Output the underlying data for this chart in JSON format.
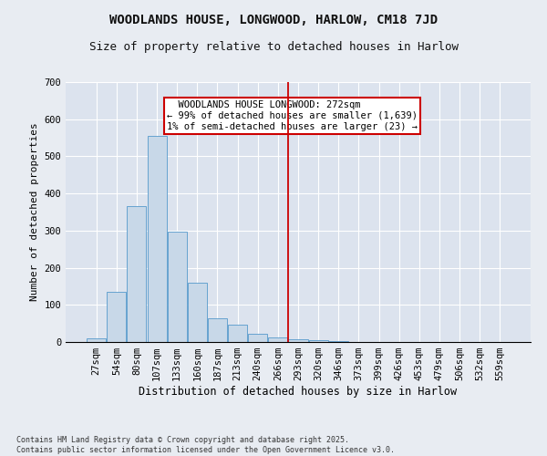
{
  "title": "WOODLANDS HOUSE, LONGWOOD, HARLOW, CM18 7JD",
  "subtitle": "Size of property relative to detached houses in Harlow",
  "xlabel": "Distribution of detached houses by size in Harlow",
  "ylabel": "Number of detached properties",
  "categories": [
    "27sqm",
    "54sqm",
    "80sqm",
    "107sqm",
    "133sqm",
    "160sqm",
    "187sqm",
    "213sqm",
    "240sqm",
    "266sqm",
    "293sqm",
    "320sqm",
    "346sqm",
    "373sqm",
    "399sqm",
    "426sqm",
    "453sqm",
    "479sqm",
    "506sqm",
    "532sqm",
    "559sqm"
  ],
  "values": [
    10,
    135,
    365,
    555,
    298,
    160,
    65,
    46,
    22,
    13,
    8,
    5,
    3,
    0,
    0,
    0,
    0,
    0,
    0,
    0,
    0
  ],
  "bar_color": "#c8d8e8",
  "bar_edge_color": "#5599cc",
  "vline_x": 9.5,
  "vline_color": "#cc0000",
  "annotation_text": "  WOODLANDS HOUSE LONGWOOD: 272sqm\n← 99% of detached houses are smaller (1,639)\n1% of semi-detached houses are larger (23) →",
  "annotation_box_color": "#cc0000",
  "fig_facecolor": "#e8ecf2",
  "axes_facecolor": "#dce3ee",
  "grid_color": "#ffffff",
  "ylim": [
    0,
    700
  ],
  "yticks": [
    0,
    100,
    200,
    300,
    400,
    500,
    600,
    700
  ],
  "footnote": "Contains HM Land Registry data © Crown copyright and database right 2025.\nContains public sector information licensed under the Open Government Licence v3.0.",
  "title_fontsize": 10,
  "subtitle_fontsize": 9,
  "xlabel_fontsize": 8.5,
  "ylabel_fontsize": 8,
  "tick_fontsize": 7.5,
  "annotation_fontsize": 7.5,
  "footnote_fontsize": 6
}
